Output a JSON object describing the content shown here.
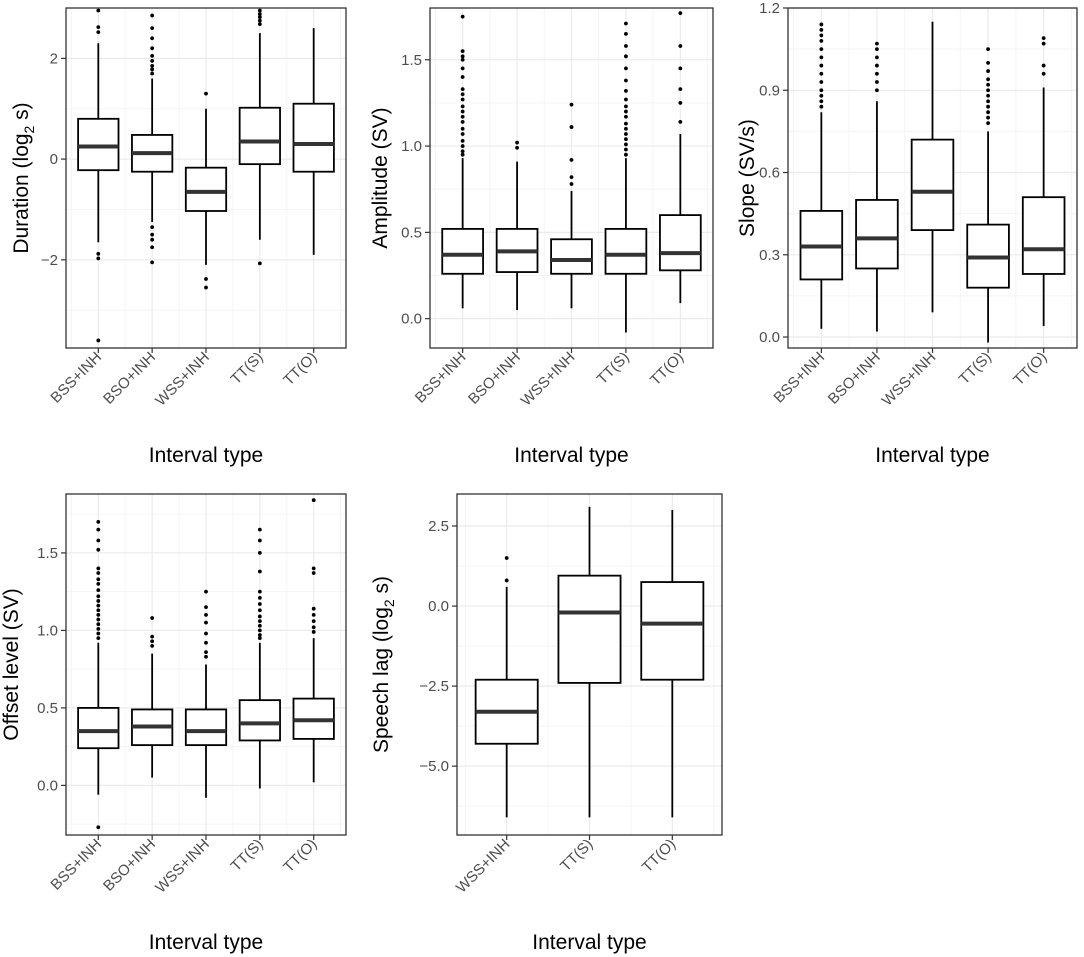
{
  "chart_data": [
    {
      "type": "boxplot",
      "xlabel": "Interval type",
      "ylabel": "Duration (log",
      "ylabel_sub": "2",
      "ylabel_end": " s)",
      "categories": [
        "BSS+INH",
        "BSO+INH",
        "WSS+INH",
        "TT(S)",
        "TT(O)"
      ],
      "ylim": [
        -3.75,
        3.0
      ],
      "yticks": [
        {
          "v": -2,
          "label": "−2"
        },
        {
          "v": 0,
          "label": "0"
        },
        {
          "v": 2,
          "label": "2"
        }
      ],
      "minor_ticks": [
        -3,
        -1,
        1
      ],
      "boxes": [
        {
          "lo": -1.65,
          "q1": -0.22,
          "med": 0.25,
          "q3": 0.8,
          "hi": 2.3,
          "outliers": [
            2.95,
            2.62,
            2.52,
            -1.88,
            -1.97,
            -3.6
          ]
        },
        {
          "lo": -1.25,
          "q1": -0.25,
          "med": 0.12,
          "q3": 0.48,
          "hi": 1.6,
          "outliers": [
            2.85,
            2.6,
            2.4,
            2.2,
            2.05,
            1.95,
            1.85,
            1.78,
            1.7,
            -1.35,
            -1.5,
            -1.6,
            -1.75,
            -2.05
          ]
        },
        {
          "lo": -2.1,
          "q1": -1.03,
          "med": -0.65,
          "q3": -0.17,
          "hi": 1.0,
          "outliers": [
            1.3,
            -2.38,
            -2.55
          ]
        },
        {
          "lo": -1.6,
          "q1": -0.1,
          "med": 0.35,
          "q3": 1.02,
          "hi": 2.5,
          "outliers": [
            2.95,
            2.88,
            2.82,
            2.75,
            2.68,
            -2.07
          ]
        },
        {
          "lo": -1.9,
          "q1": -0.25,
          "med": 0.3,
          "q3": 1.1,
          "hi": 2.6,
          "outliers": []
        }
      ]
    },
    {
      "type": "boxplot",
      "xlabel": "Interval type",
      "ylabel": "Amplitude (SV)",
      "categories": [
        "BSS+INH",
        "BSO+INH",
        "WSS+INH",
        "TT(S)",
        "TT(O)"
      ],
      "ylim": [
        -0.17,
        1.8
      ],
      "yticks": [
        {
          "v": 0,
          "label": "0.0"
        },
        {
          "v": 0.5,
          "label": "0.5"
        },
        {
          "v": 1.0,
          "label": "1.0"
        },
        {
          "v": 1.5,
          "label": "1.5"
        }
      ],
      "minor_ticks": [
        0.25,
        0.75,
        1.25
      ],
      "boxes": [
        {
          "lo": 0.06,
          "q1": 0.26,
          "med": 0.37,
          "q3": 0.52,
          "hi": 0.93,
          "outliers": [
            1.75,
            1.55,
            1.52,
            1.5,
            1.45,
            1.4,
            1.33,
            1.3,
            1.27,
            1.23,
            1.2,
            1.17,
            1.14,
            1.1,
            1.07,
            1.03,
            1.0,
            0.97,
            0.95
          ]
        },
        {
          "lo": 0.05,
          "q1": 0.27,
          "med": 0.39,
          "q3": 0.52,
          "hi": 0.91,
          "outliers": [
            1.02,
            0.99
          ]
        },
        {
          "lo": 0.06,
          "q1": 0.26,
          "med": 0.34,
          "q3": 0.46,
          "hi": 0.74,
          "outliers": [
            1.24,
            1.11,
            0.92,
            0.82,
            0.78
          ]
        },
        {
          "lo": -0.08,
          "q1": 0.26,
          "med": 0.37,
          "q3": 0.52,
          "hi": 0.93,
          "outliers": [
            1.71,
            1.65,
            1.58,
            1.52,
            1.45,
            1.38,
            1.32,
            1.27,
            1.23,
            1.2,
            1.17,
            1.13,
            1.1,
            1.07,
            1.04,
            1.01,
            0.98,
            0.95
          ]
        },
        {
          "lo": 0.09,
          "q1": 0.28,
          "med": 0.38,
          "q3": 0.6,
          "hi": 1.07,
          "outliers": [
            1.77,
            1.58,
            1.45,
            1.33,
            1.25,
            1.14
          ]
        }
      ]
    },
    {
      "type": "boxplot",
      "xlabel": "Interval type",
      "ylabel": "Slope (SV/s)",
      "categories": [
        "BSS+INH",
        "BSO+INH",
        "WSS+INH",
        "TT(S)",
        "TT(O)"
      ],
      "ylim": [
        -0.04,
        1.2
      ],
      "yticks": [
        {
          "v": 0,
          "label": "0.0"
        },
        {
          "v": 0.3,
          "label": "0.3"
        },
        {
          "v": 0.6,
          "label": "0.6"
        },
        {
          "v": 0.9,
          "label": "0.9"
        },
        {
          "v": 1.2,
          "label": "1.2"
        }
      ],
      "minor_ticks": [
        0.15,
        0.45,
        0.75,
        1.05
      ],
      "boxes": [
        {
          "lo": 0.03,
          "q1": 0.21,
          "med": 0.33,
          "q3": 0.46,
          "hi": 0.82,
          "outliers": [
            1.14,
            1.12,
            1.1,
            1.08,
            1.05,
            1.02,
            0.99,
            0.96,
            0.93,
            0.9,
            0.88,
            0.86,
            0.84
          ]
        },
        {
          "lo": 0.02,
          "q1": 0.25,
          "med": 0.36,
          "q3": 0.5,
          "hi": 0.86,
          "outliers": [
            1.07,
            1.05,
            1.02,
            0.99,
            0.96,
            0.93,
            0.9
          ]
        },
        {
          "lo": 0.09,
          "q1": 0.39,
          "med": 0.53,
          "q3": 0.72,
          "hi": 1.15,
          "outliers": []
        },
        {
          "lo": -0.02,
          "q1": 0.18,
          "med": 0.29,
          "q3": 0.41,
          "hi": 0.75,
          "outliers": [
            1.05,
            1.0,
            0.97,
            0.94,
            0.92,
            0.9,
            0.88,
            0.86,
            0.84,
            0.82,
            0.8,
            0.78
          ]
        },
        {
          "lo": 0.04,
          "q1": 0.23,
          "med": 0.32,
          "q3": 0.51,
          "hi": 0.91,
          "outliers": [
            1.09,
            1.07,
            0.99,
            0.96
          ]
        }
      ]
    },
    {
      "type": "boxplot",
      "xlabel": "Interval type",
      "ylabel": "Offset level (SV)",
      "categories": [
        "BSS+INH",
        "BSO+INH",
        "WSS+INH",
        "TT(S)",
        "TT(O)"
      ],
      "ylim": [
        -0.32,
        1.88
      ],
      "yticks": [
        {
          "v": 0,
          "label": "0.0"
        },
        {
          "v": 0.5,
          "label": "0.5"
        },
        {
          "v": 1.0,
          "label": "1.0"
        },
        {
          "v": 1.5,
          "label": "1.5"
        }
      ],
      "minor_ticks": [
        -0.25,
        0.25,
        0.75,
        1.25,
        1.75
      ],
      "boxes": [
        {
          "lo": -0.06,
          "q1": 0.24,
          "med": 0.35,
          "q3": 0.5,
          "hi": 0.92,
          "outliers": [
            1.7,
            1.65,
            1.58,
            1.52,
            1.4,
            1.37,
            1.33,
            1.3,
            1.26,
            1.22,
            1.19,
            1.16,
            1.13,
            1.1,
            1.07,
            1.04,
            1.01,
            0.98,
            0.95,
            -0.27
          ]
        },
        {
          "lo": 0.05,
          "q1": 0.26,
          "med": 0.38,
          "q3": 0.49,
          "hi": 0.85,
          "outliers": [
            1.08,
            0.96,
            0.93,
            0.9
          ]
        },
        {
          "lo": -0.08,
          "q1": 0.26,
          "med": 0.35,
          "q3": 0.49,
          "hi": 0.78,
          "outliers": [
            1.25,
            1.15,
            1.1,
            1.05,
            0.98,
            0.92,
            0.86,
            0.83
          ]
        },
        {
          "lo": -0.02,
          "q1": 0.29,
          "med": 0.4,
          "q3": 0.55,
          "hi": 0.92,
          "outliers": [
            1.65,
            1.58,
            1.5,
            1.38,
            1.25,
            1.21,
            1.17,
            1.13,
            1.09,
            1.06,
            1.03,
            1.0,
            0.97,
            0.95
          ]
        },
        {
          "lo": 0.02,
          "q1": 0.3,
          "med": 0.42,
          "q3": 0.56,
          "hi": 0.95,
          "outliers": [
            1.84,
            1.4,
            1.37,
            1.14,
            1.1,
            1.06,
            1.02,
            0.99
          ]
        }
      ]
    },
    {
      "type": "boxplot",
      "xlabel": "Interval type",
      "ylabel": "Speech lag (log",
      "ylabel_sub": "2",
      "ylabel_end": " s)",
      "categories": [
        "WSS+INH",
        "TT(S)",
        "TT(O)"
      ],
      "ylim": [
        -7.15,
        3.5
      ],
      "yticks": [
        {
          "v": -5,
          "label": "−5.0"
        },
        {
          "v": -2.5,
          "label": "−2.5"
        },
        {
          "v": 0,
          "label": "0.0"
        },
        {
          "v": 2.5,
          "label": "2.5"
        }
      ],
      "minor_ticks": [
        -6.25,
        -3.75,
        -1.25,
        1.25
      ],
      "boxes": [
        {
          "lo": -6.6,
          "q1": -4.3,
          "med": -3.3,
          "q3": -2.3,
          "hi": 0.6,
          "outliers": [
            1.5,
            0.8
          ]
        },
        {
          "lo": -6.6,
          "q1": -2.4,
          "med": -0.2,
          "q3": 0.95,
          "hi": 3.1,
          "outliers": []
        },
        {
          "lo": -6.6,
          "q1": -2.3,
          "med": -0.55,
          "q3": 0.75,
          "hi": 3.0,
          "outliers": []
        }
      ]
    }
  ],
  "colors": {
    "panel_border": "#333333",
    "grid_major": "#ebebeb",
    "grid_minor": "#f5f5f5",
    "box_line": "#000000",
    "median_line": "#333333",
    "outlier": "#000000",
    "tick_label": "#4d4d4d"
  }
}
